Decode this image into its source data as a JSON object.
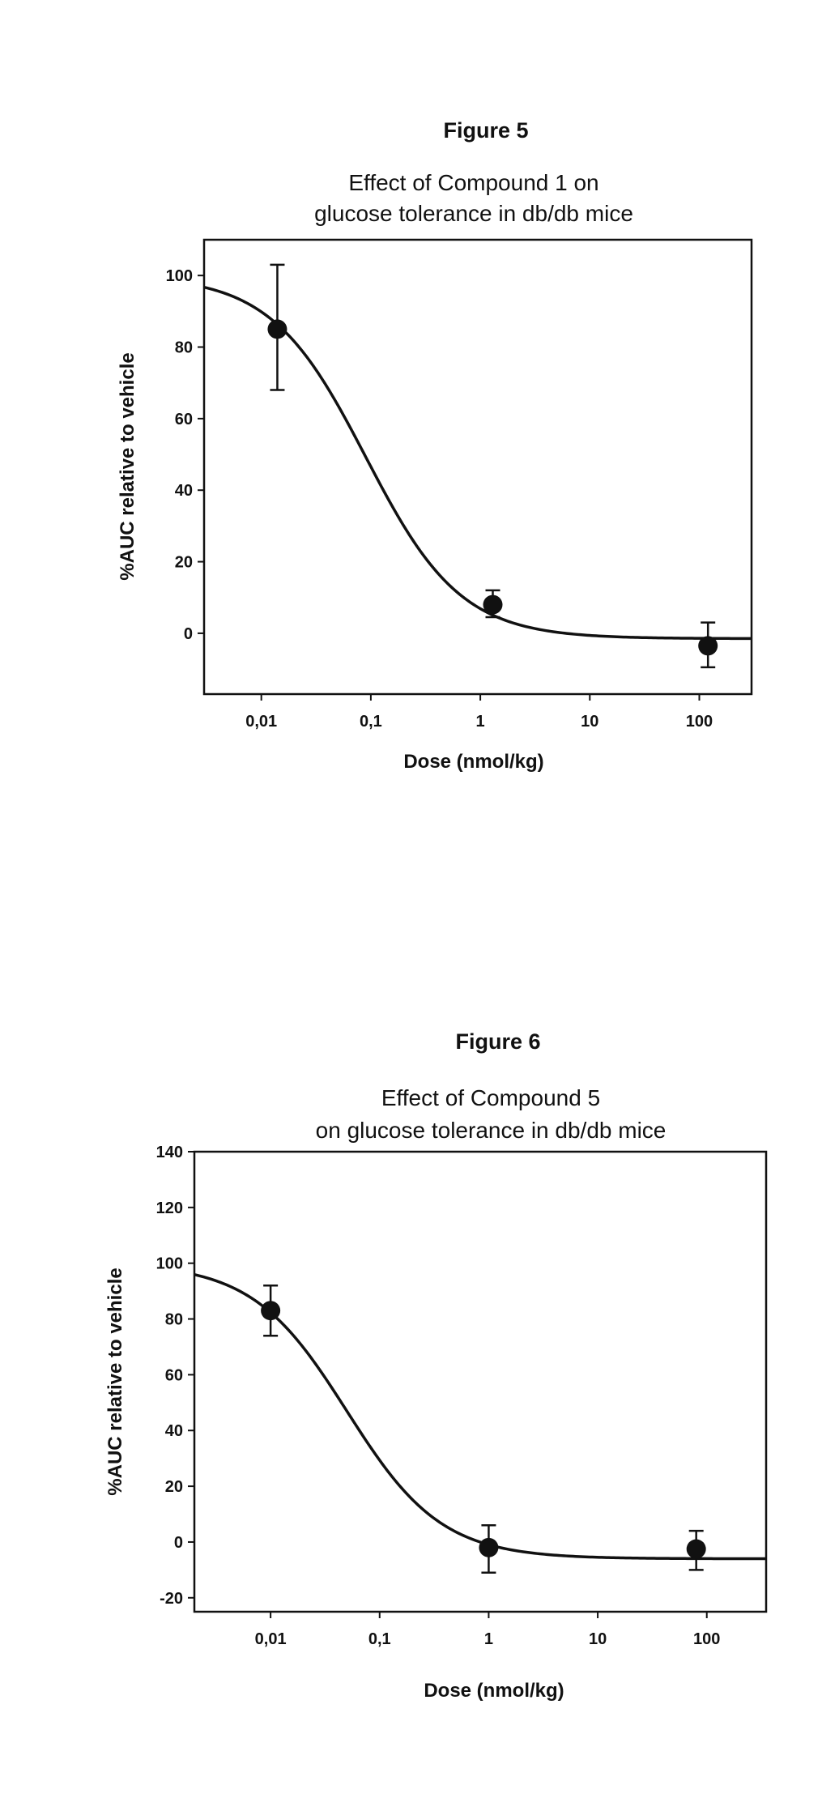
{
  "chart_data": [
    {
      "type": "scatter",
      "figure_label": "Figure 5",
      "title_lines": [
        "Effect of Compound 1 on",
        "glucose tolerance in db/db mice"
      ],
      "xlabel": "Dose (nmol/kg)",
      "ylabel": "%AUC relative to vehicle",
      "x_scale": "log",
      "xlim": [
        0.003,
        300
      ],
      "ylim": [
        -17,
        110
      ],
      "x_ticks": [
        {
          "value": 0.01,
          "label": "0,01"
        },
        {
          "value": 0.1,
          "label": "0,1"
        },
        {
          "value": 1,
          "label": "1"
        },
        {
          "value": 10,
          "label": "10"
        },
        {
          "value": 100,
          "label": "100"
        }
      ],
      "y_ticks": [
        {
          "value": 0,
          "label": "0"
        },
        {
          "value": 20,
          "label": "20"
        },
        {
          "value": 40,
          "label": "40"
        },
        {
          "value": 60,
          "label": "60"
        },
        {
          "value": 80,
          "label": "80"
        },
        {
          "value": 100,
          "label": "100"
        }
      ],
      "points": [
        {
          "x": 0.014,
          "y": 85,
          "err_low": 68,
          "err_high": 103
        },
        {
          "x": 1.3,
          "y": 8,
          "err_low": 4.5,
          "err_high": 12
        },
        {
          "x": 120,
          "y": -3.5,
          "err_low": -9.5,
          "err_high": 3
        }
      ],
      "fit": {
        "model": "sigmoid-log",
        "top": 100,
        "bottom": -1.5,
        "ec50": 0.09,
        "hill": 1
      },
      "grid": false
    },
    {
      "type": "scatter",
      "figure_label": "Figure 6",
      "title_lines": [
        "Effect of Compound 5",
        "on glucose tolerance in db/db mice"
      ],
      "xlabel": "Dose (nmol/kg)",
      "ylabel": "%AUC relative to vehicle",
      "x_scale": "log",
      "xlim": [
        0.002,
        350
      ],
      "ylim": [
        -25,
        140
      ],
      "x_ticks": [
        {
          "value": 0.01,
          "label": "0,01"
        },
        {
          "value": 0.1,
          "label": "0,1"
        },
        {
          "value": 1,
          "label": "1"
        },
        {
          "value": 10,
          "label": "10"
        },
        {
          "value": 100,
          "label": "100"
        }
      ],
      "y_ticks": [
        {
          "value": -20,
          "label": "-20"
        },
        {
          "value": 0,
          "label": "0"
        },
        {
          "value": 20,
          "label": "20"
        },
        {
          "value": 40,
          "label": "40"
        },
        {
          "value": 60,
          "label": "60"
        },
        {
          "value": 80,
          "label": "80"
        },
        {
          "value": 100,
          "label": "100"
        },
        {
          "value": 120,
          "label": "120"
        },
        {
          "value": 140,
          "label": "140"
        }
      ],
      "points": [
        {
          "x": 0.01,
          "y": 83,
          "err_low": 74,
          "err_high": 92
        },
        {
          "x": 1,
          "y": -2,
          "err_low": -11,
          "err_high": 6
        },
        {
          "x": 80,
          "y": -2.5,
          "err_low": -10,
          "err_high": 4
        }
      ],
      "fit": {
        "model": "sigmoid-log",
        "top": 100,
        "bottom": -6,
        "ec50": 0.05,
        "hill": 1
      },
      "grid": false
    }
  ]
}
